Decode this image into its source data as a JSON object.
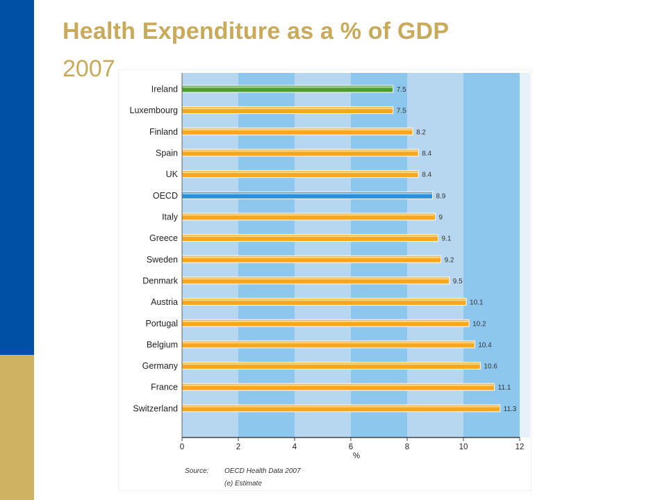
{
  "slide": {
    "title": "Health Expenditure as a % of GDP",
    "subtitle": "2007"
  },
  "chart_data": {
    "type": "bar",
    "orientation": "horizontal",
    "title": "",
    "xlabel": "%",
    "ylabel": "",
    "xlim": [
      0,
      12
    ],
    "xticks": [
      0,
      2,
      4,
      6,
      8,
      10,
      12
    ],
    "grid": false,
    "categories": [
      "Ireland",
      "Luxembourg",
      "Finland",
      "Spain",
      "UK",
      "OECD",
      "Italy",
      "Greece",
      "Sweden",
      "Denmark",
      "Austria",
      "Portugal",
      "Belgium",
      "Germany",
      "France",
      "Switzerland"
    ],
    "values": [
      7.5,
      7.5,
      8.2,
      8.4,
      8.4,
      8.9,
      9,
      9.1,
      9.2,
      9.5,
      10.1,
      10.2,
      10.4,
      10.6,
      11.1,
      11.3
    ],
    "value_labels": [
      "7.5",
      "7.5",
      "8.2",
      "8.4",
      "8.4",
      "8.9",
      "9",
      "9.1",
      "9.2",
      "9.5",
      "10.1",
      "10.2",
      "10.4",
      "10.6",
      "11.1",
      "11.3"
    ],
    "bar_colors": {
      "default": "#f6a71c",
      "Ireland": "#4c9c2e",
      "OECD": "#2f8fd6"
    },
    "band_colors": [
      "#b7d7f1",
      "#8ec7ee"
    ],
    "source_label": "Source:",
    "source": "OECD Health Data 2007",
    "note": "(e) Estimate"
  }
}
